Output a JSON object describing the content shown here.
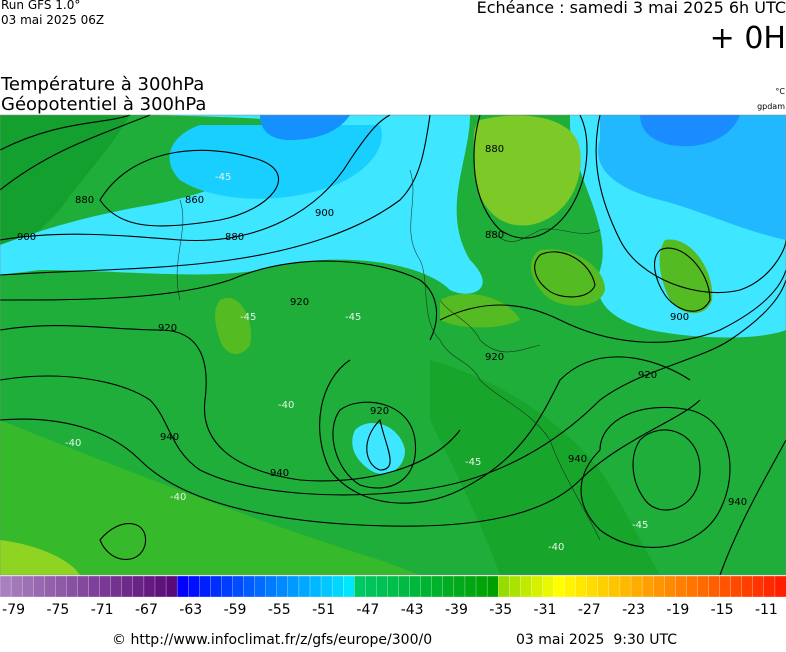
{
  "header": {
    "run": "Run GFS 1.0°",
    "run_date": "03 mai 2025 06Z",
    "echeance": "Echéance : samedi 3 mai 2025 6h UTC",
    "lead": "+ 0H",
    "title_1": "Température à 300hPa",
    "title_2": "Géopotentiel à 300hPa",
    "unit_temp": "°C",
    "unit_geo": "gpdam"
  },
  "map": {
    "contour_labels": [
      "880",
      "860",
      "900",
      "880",
      "900",
      "880",
      "880",
      "920",
      "920",
      "900",
      "920",
      "920",
      "940",
      "920",
      "940",
      "940",
      "940",
      "-45",
      "-45",
      "-45",
      "-40",
      "-40",
      "-45",
      "-40",
      "-45",
      "-40"
    ]
  },
  "colorbar": {
    "ticks": [
      -79,
      -75,
      -71,
      -67,
      -63,
      -59,
      -55,
      -51,
      -47,
      -43,
      -39,
      -35,
      -31,
      -27,
      -23,
      -19,
      -15,
      -11
    ]
  },
  "footer": {
    "url": "© http://www.infoclimat.fr/z/gfs/europe/300/0",
    "time": "03 mai 2025  9:30 UTC"
  }
}
